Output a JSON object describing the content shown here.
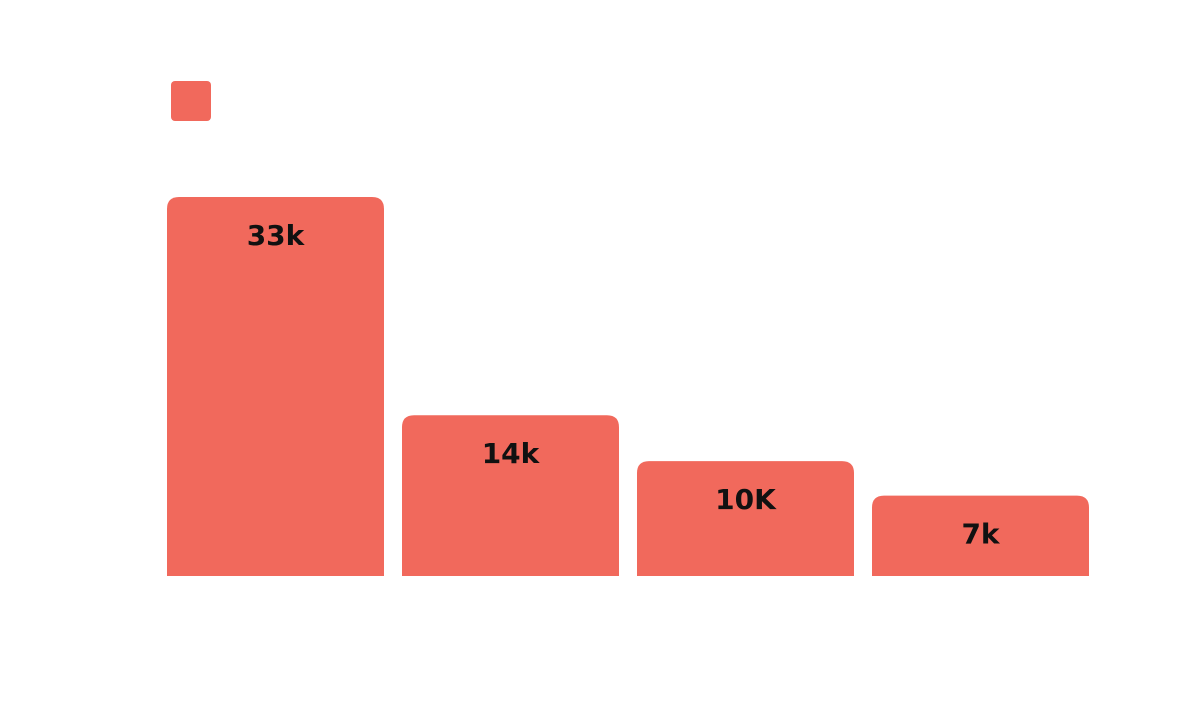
{
  "chart_data": {
    "type": "bar",
    "categories": [
      "",
      "",
      "",
      ""
    ],
    "series": [
      {
        "values": [
          33000,
          14000,
          10000,
          7000
        ],
        "data_labels": [
          "33k",
          "14k",
          "10K",
          "7k"
        ],
        "color": "#F1695C"
      }
    ],
    "ylim": [
      0,
      35000
    ],
    "grid": false,
    "legend": "top-left"
  }
}
